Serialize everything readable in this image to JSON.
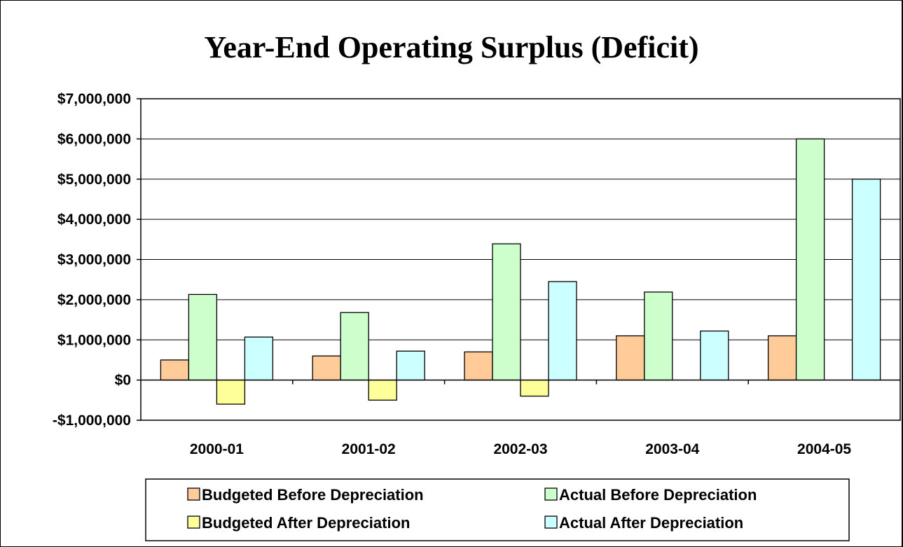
{
  "chart_data": {
    "type": "bar",
    "title": "Year-End Operating Surplus (Deficit)",
    "categories": [
      "2000-01",
      "2001-02",
      "2002-03",
      "2003-04",
      "2004-05"
    ],
    "series": [
      {
        "name": "Budgeted Before Depreciation",
        "color": "#FFCC99",
        "values": [
          500000,
          600000,
          700000,
          1100000,
          1100000
        ]
      },
      {
        "name": "Actual Before Depreciation",
        "color": "#CCFFCC",
        "values": [
          2130000,
          1680000,
          3390000,
          2190000,
          6000000
        ]
      },
      {
        "name": "Budgeted After Depreciation",
        "color": "#FFFF99",
        "values": [
          -600000,
          -500000,
          -400000,
          0,
          0
        ]
      },
      {
        "name": "Actual After Depreciation",
        "color": "#CCFFFF",
        "values": [
          1070000,
          720000,
          2450000,
          1220000,
          5000000
        ]
      }
    ],
    "ylim": [
      -1000000,
      7000000
    ],
    "yticks": [
      -1000000,
      0,
      1000000,
      2000000,
      3000000,
      4000000,
      5000000,
      6000000,
      7000000
    ],
    "ytick_labels": [
      "-$1,000,000",
      "$0",
      "$1,000,000",
      "$2,000,000",
      "$3,000,000",
      "$4,000,000",
      "$5,000,000",
      "$6,000,000",
      "$7,000,000"
    ],
    "grid": true,
    "legend_position": "bottom"
  }
}
